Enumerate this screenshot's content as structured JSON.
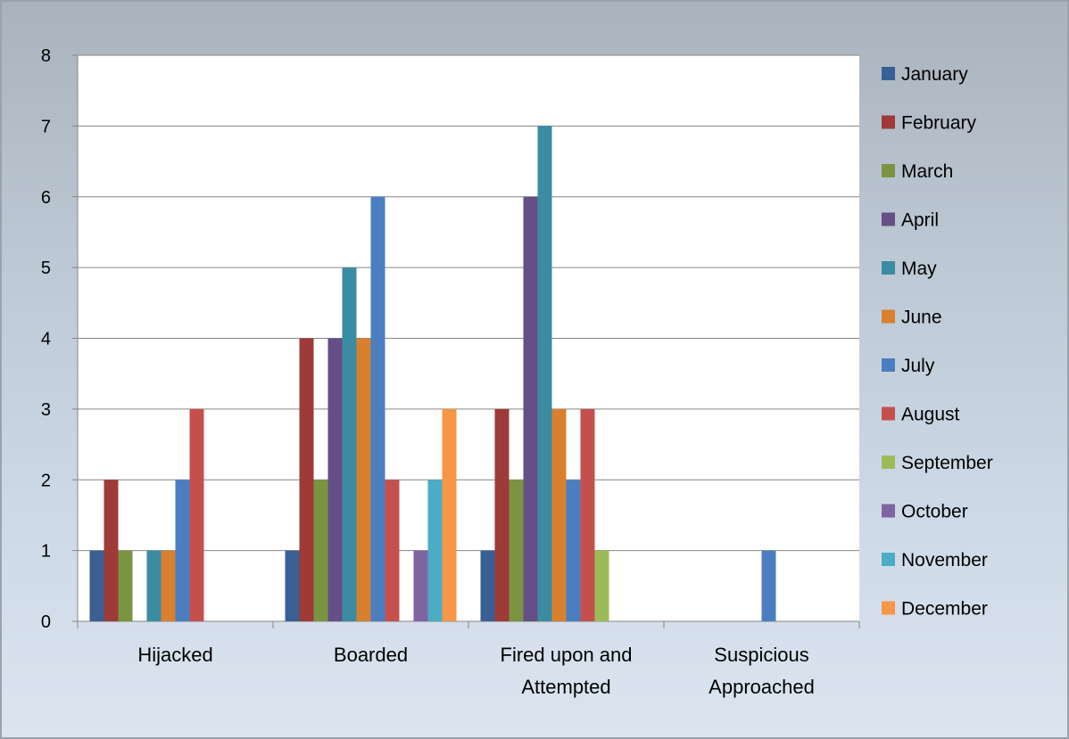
{
  "chart_data": {
    "type": "bar",
    "categories": [
      "Hijacked",
      "Boarded",
      "Fired upon and Attempted",
      "Suspicious Approached"
    ],
    "category_lines": [
      [
        "Hijacked"
      ],
      [
        "Boarded"
      ],
      [
        "Fired upon and",
        "Attempted"
      ],
      [
        "Suspicious",
        "Approached"
      ]
    ],
    "ylim": [
      0,
      8
    ],
    "yticks": [
      0,
      1,
      2,
      3,
      4,
      5,
      6,
      7,
      8
    ],
    "grid": true,
    "legend_position": "right",
    "series": [
      {
        "name": "January",
        "color": "#3a5f94",
        "values": [
          1,
          1,
          1,
          0
        ]
      },
      {
        "name": "February",
        "color": "#9e3a38",
        "values": [
          2,
          4,
          3,
          0
        ]
      },
      {
        "name": "March",
        "color": "#7b9441",
        "values": [
          1,
          2,
          2,
          0
        ]
      },
      {
        "name": "April",
        "color": "#654f86",
        "values": [
          0,
          4,
          6,
          0
        ]
      },
      {
        "name": "May",
        "color": "#3a8ca2",
        "values": [
          1,
          5,
          7,
          0
        ]
      },
      {
        "name": "June",
        "color": "#d8802f",
        "values": [
          1,
          4,
          3,
          0
        ]
      },
      {
        "name": "July",
        "color": "#4b7ec1",
        "values": [
          2,
          6,
          2,
          1
        ]
      },
      {
        "name": "August",
        "color": "#c4504d",
        "values": [
          3,
          2,
          3,
          0
        ]
      },
      {
        "name": "September",
        "color": "#9bbb59",
        "values": [
          0,
          0,
          1,
          0
        ]
      },
      {
        "name": "October",
        "color": "#8064a2",
        "values": [
          0,
          1,
          0,
          0
        ]
      },
      {
        "name": "November",
        "color": "#4bacc6",
        "values": [
          0,
          2,
          0,
          0
        ]
      },
      {
        "name": "December",
        "color": "#f79646",
        "values": [
          0,
          3,
          0,
          0
        ]
      }
    ]
  }
}
